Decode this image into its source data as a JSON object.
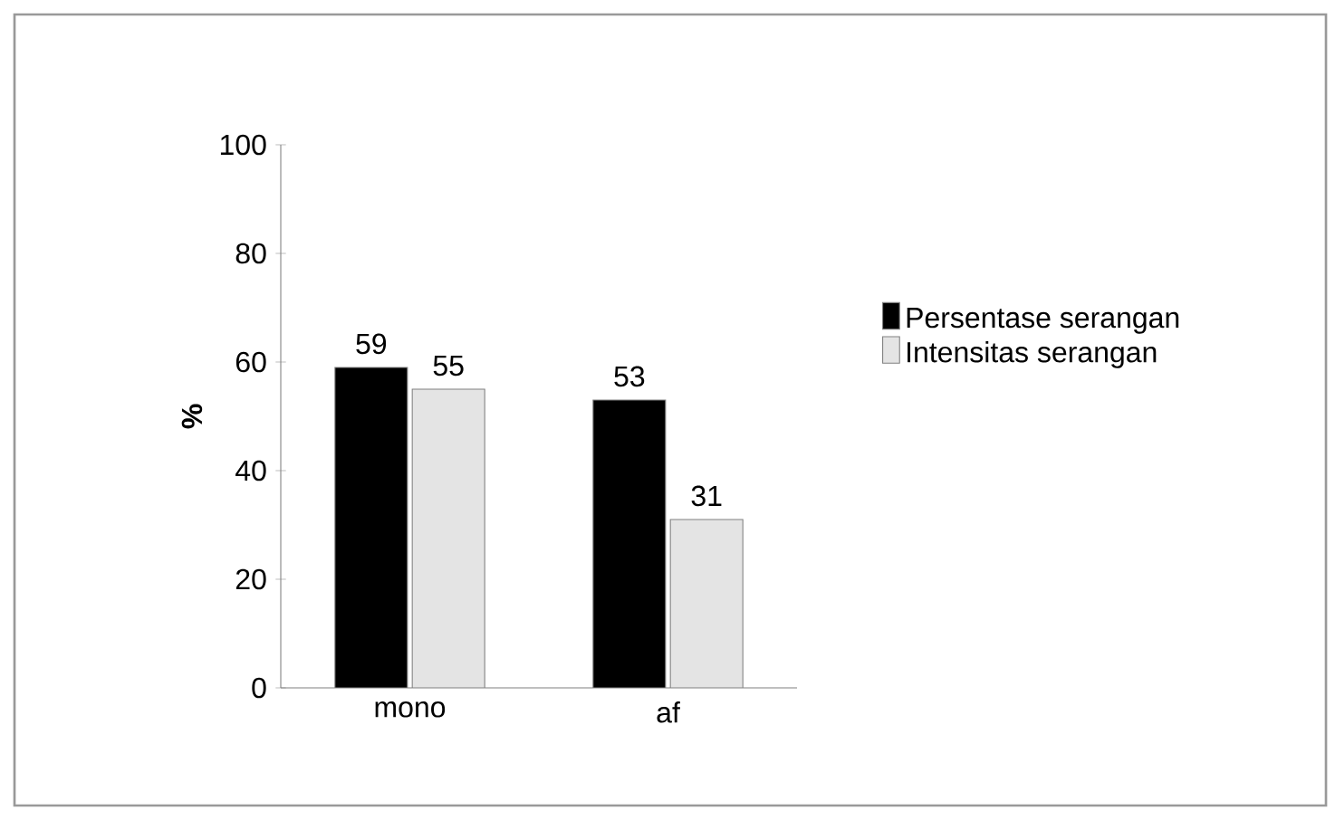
{
  "chart_data": {
    "type": "bar",
    "ylabel": "%",
    "categories": [
      "mono",
      "af"
    ],
    "series": [
      {
        "name": "Persentase serangan",
        "color": "#000000",
        "values": [
          59,
          53
        ]
      },
      {
        "name": "Intensitas serangan",
        "color": "#e4e4e4",
        "values": [
          55,
          31
        ]
      }
    ],
    "ylim": [
      0,
      100
    ],
    "yticks": [
      0,
      20,
      40,
      60,
      80,
      100
    ],
    "data_labels": true,
    "legend": "right",
    "grid": false
  }
}
